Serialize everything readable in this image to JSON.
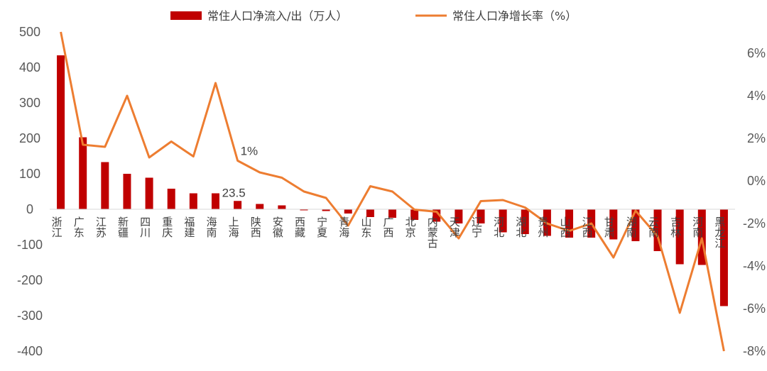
{
  "chart_data": {
    "type": "bar+line",
    "categories": [
      "浙江",
      "广东",
      "江苏",
      "新疆",
      "四川",
      "重庆",
      "福建",
      "海南",
      "上海",
      "陕西",
      "安徽",
      "西藏",
      "宁夏",
      "青海",
      "山东",
      "广西",
      "北京",
      "内蒙古",
      "天津",
      "辽宁",
      "河北",
      "湖北",
      "贵州",
      "山西",
      "江西",
      "甘肃",
      "湖南",
      "云南",
      "吉林",
      "河南",
      "黑龙江"
    ],
    "series": [
      {
        "name": "常住人口净流入/出（万人）",
        "type": "bar",
        "axis": "left",
        "color": "#C00000",
        "values": [
          434,
          203,
          133,
          100,
          89,
          58,
          45,
          45,
          23.5,
          15,
          11,
          -3,
          -5,
          -12,
          -22,
          -24,
          -30,
          -35,
          -40,
          -40,
          -65,
          -70,
          -75,
          -80,
          -80,
          -85,
          -90,
          -118,
          -155,
          -157,
          -273
        ]
      },
      {
        "name": "常住人口净增长率（%）",
        "type": "line",
        "axis": "right",
        "color": "#ED7D31",
        "values": [
          7.0,
          1.7,
          1.6,
          4.0,
          1.1,
          1.85,
          1.15,
          4.6,
          0.95,
          0.4,
          0.15,
          -0.5,
          -0.8,
          -2.1,
          -0.25,
          -0.5,
          -1.35,
          -1.45,
          -2.7,
          -0.95,
          -0.9,
          -1.25,
          -2.0,
          -2.35,
          -2.0,
          -3.6,
          -1.4,
          -2.6,
          -6.2,
          -2.7,
          -8.0
        ]
      }
    ],
    "y_left": {
      "min": -400,
      "max": 500,
      "step": 100,
      "ticks": [
        "-400",
        "-300",
        "-200",
        "-100",
        "0",
        "100",
        "200",
        "300",
        "400",
        "500"
      ]
    },
    "y_right": {
      "min": -8,
      "max": 6,
      "step": 2,
      "ticks": [
        "-8%",
        "-6%",
        "-4%",
        "-2%",
        "0%",
        "2%",
        "4%",
        "6%"
      ]
    },
    "annotations": [
      {
        "text": "23.5",
        "category": "上海",
        "series": "bar"
      },
      {
        "text": "1%",
        "category": "上海",
        "series": "line"
      }
    ],
    "legend_position": "top-center",
    "grid": false
  }
}
